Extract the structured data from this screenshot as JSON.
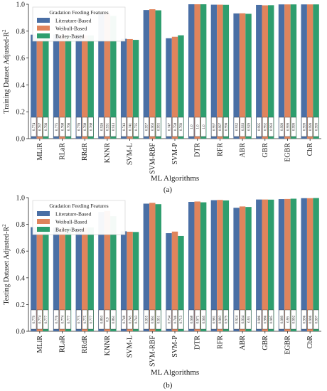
{
  "chart_data": [
    {
      "type": "bar",
      "panel_label": "(a)",
      "xlabel": "ML Algorithms",
      "ylabel": "Training Dataset Adjusted-R",
      "ylabel_sup": "2",
      "ylim": [
        0,
        1.0
      ],
      "yticks": [
        "0.0",
        "0.2",
        "0.4",
        "0.6",
        "0.8",
        "1.0"
      ],
      "legend_title": "Gradation Feeding Features",
      "legend_position": "top-left",
      "grid": false,
      "categories": [
        "MLiR",
        "RLaR",
        "RRdR",
        "KNNR",
        "SVM-L",
        "SVM-RBF",
        "SVM-P",
        "DTR",
        "RFR",
        "ABR",
        "GBR",
        "EGBR",
        "CbR"
      ],
      "series": [
        {
          "name": "Literature-Based",
          "color": "#4a6fa5",
          "values": [
            0.774,
            0.775,
            0.776,
            0.926,
            0.743,
            0.957,
            0.747,
            1.0,
            0.997,
            0.932,
            0.995,
            0.999,
            0.999
          ],
          "labels": [
            "0.774",
            "0.775",
            "0.776",
            "0.926",
            "0.743",
            "0.957",
            "0.747",
            "1.0",
            "0.997",
            "0.932",
            "0.995",
            "0.999",
            "0.999"
          ]
        },
        {
          "name": "Weibull-Based",
          "color": "#e0845c",
          "values": [
            0.767,
            0.768,
            0.768,
            0.931,
            0.741,
            0.963,
            0.758,
            1.0,
            0.997,
            0.933,
            0.992,
            0.999,
            0.999
          ],
          "labels": [
            "0.767",
            "0.768",
            "0.768",
            "0.931",
            "0.741",
            "0.963",
            "0.758",
            "1.0",
            "0.997",
            "0.933",
            "0.992",
            "0.999",
            "0.999"
          ]
        },
        {
          "name": "Bailey-Based",
          "color": "#2e9e6e",
          "values": [
            0.766,
            0.766,
            0.768,
            0.913,
            0.735,
            0.955,
            0.769,
            1.0,
            0.996,
            0.929,
            0.993,
            0.999,
            0.999
          ],
          "labels": [
            "0.766",
            "0.766",
            "0.768",
            "0.913",
            "0.735",
            "0.955",
            "0.769",
            "1.0",
            "0.996",
            "0.929",
            "0.993",
            "0.999",
            "0.999"
          ]
        }
      ]
    },
    {
      "type": "bar",
      "panel_label": "(b)",
      "xlabel": "ML Algorithms",
      "ylabel": "Testing Dataset Adjusted-R",
      "ylabel_sup": "2",
      "ylim": [
        0,
        1.0
      ],
      "yticks": [
        "0.0",
        "0.2",
        "0.4",
        "0.6",
        "0.8",
        "1.0"
      ],
      "legend_title": "Gradation Feeding Features",
      "legend_position": "top-left",
      "grid": false,
      "categories": [
        "MLiR",
        "RLaR",
        "RRdR",
        "KNNR",
        "SVM-L",
        "SVM-RBF",
        "SVM-P",
        "DTR",
        "RFR",
        "ABR",
        "GBR",
        "EGBR",
        "CbR"
      ],
      "series": [
        {
          "name": "Literature-Based",
          "color": "#4a6fa5",
          "values": [
            0.779,
            0.776,
            0.775,
            0.893,
            0.748,
            0.955,
            0.734,
            0.968,
            0.981,
            0.924,
            0.986,
            0.989,
            0.996
          ],
          "labels": [
            "0.779",
            "0.776",
            "0.775",
            "0.893",
            "0.748",
            "0.955",
            "0.734",
            "0.968",
            "0.981",
            "0.924",
            "0.986",
            "0.989",
            "0.996"
          ]
        },
        {
          "name": "Weibull-Based",
          "color": "#e0845c",
          "values": [
            0.774,
            0.774,
            0.775,
            0.9,
            0.745,
            0.961,
            0.746,
            0.971,
            0.983,
            0.934,
            0.986,
            0.99,
            0.996
          ],
          "labels": [
            "0.774",
            "0.774",
            "0.775",
            "0.9",
            "0.745",
            "0.961",
            "0.746",
            "0.971",
            "0.983",
            "0.934",
            "0.986",
            "0.99",
            "0.996"
          ]
        },
        {
          "name": "Bailey-Based",
          "color": "#2e9e6e",
          "values": [
            0.777,
            0.777,
            0.777,
            0.861,
            0.743,
            0.951,
            0.713,
            0.965,
            0.979,
            0.93,
            0.985,
            0.992,
            0.997
          ],
          "labels": [
            "0.777",
            "0.777",
            "0.777",
            "0.861",
            "0.743",
            "0.951",
            "0.713",
            "0.965",
            "0.979",
            "0.93",
            "0.985",
            "0.992",
            "0.997"
          ]
        }
      ]
    }
  ]
}
